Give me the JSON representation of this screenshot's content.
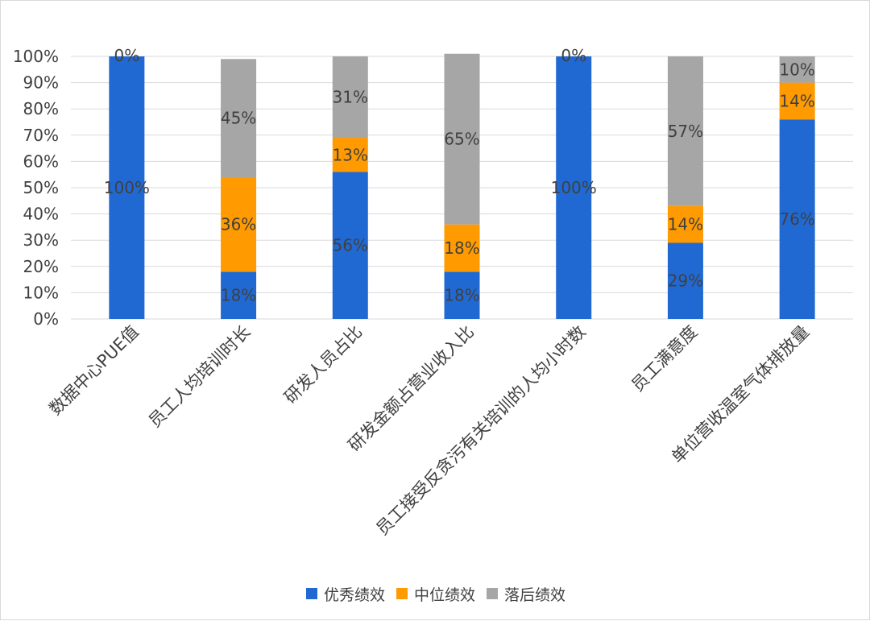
{
  "chart_data": {
    "type": "bar",
    "stacked": true,
    "percent_stacked": true,
    "categories": [
      "数据中心PUE值",
      "员工人均培训时长",
      "研发人员占比",
      "研发金额占营业收入比",
      "员工接受反贪污有关培训的人均小时数",
      "员工满意度",
      "单位营收温室气体排放量"
    ],
    "series": [
      {
        "name": "优秀绩效",
        "color": "#2169D2",
        "values": [
          100,
          18,
          56,
          18,
          100,
          29,
          76
        ]
      },
      {
        "name": "中位绩效",
        "color": "#FF9A00",
        "values": [
          0,
          36,
          13,
          18,
          0,
          14,
          14
        ]
      },
      {
        "name": "落后绩效",
        "color": "#A6A6A6",
        "values": [
          0,
          45,
          31,
          65,
          0,
          57,
          10
        ]
      }
    ],
    "top_labels": [
      "0%",
      null,
      null,
      null,
      "0%",
      null,
      null
    ],
    "ylim": [
      0,
      100
    ],
    "ytick_labels": [
      "0%",
      "10%",
      "20%",
      "30%",
      "40%",
      "50%",
      "60%",
      "70%",
      "80%",
      "90%",
      "100%"
    ],
    "grid": true,
    "legend": "bottom"
  }
}
